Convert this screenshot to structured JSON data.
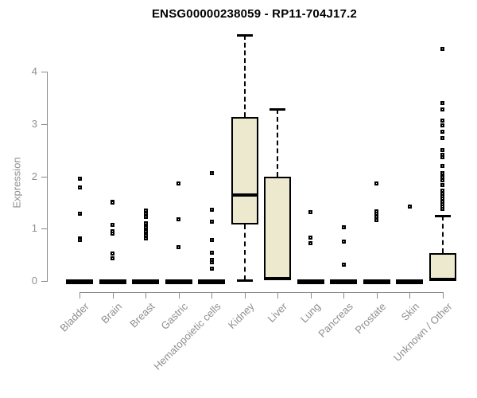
{
  "colors": {
    "box_fill": "#EDE9CF",
    "box_border": "#000000",
    "whisker": "#000000",
    "outlier": "#000000",
    "axis": "#888888",
    "tick_label": "#8f8f8f",
    "title": "#000000",
    "background": "#ffffff"
  },
  "chart_data": {
    "type": "boxplot",
    "title": "ENSG00000238059 - RP11-704J17.2",
    "xlabel": "",
    "ylabel": "Expression",
    "yticks": [
      0,
      1,
      2,
      3,
      4
    ],
    "ylim": [
      0,
      4.8
    ],
    "grid": false,
    "legend": false,
    "categories": [
      "Bladder",
      "Brain",
      "Breast",
      "Gastric",
      "Hematopoietic cells",
      "Kidney",
      "Liver",
      "Lung",
      "Pancreas",
      "Prostate",
      "Skin",
      "Unknown / Other"
    ],
    "boxes": [
      {
        "category": "Bladder",
        "q1": 0,
        "median": 0,
        "q3": 0,
        "whisker_low": 0,
        "whisker_high": 0,
        "outliers": [
          1.96,
          1.79,
          1.28,
          0.82,
          0.78
        ]
      },
      {
        "category": "Brain",
        "q1": 0,
        "median": 0,
        "q3": 0,
        "whisker_low": 0,
        "whisker_high": 0,
        "outliers": [
          1.52,
          1.5,
          1.08,
          0.95,
          0.91,
          0.53,
          0.43
        ]
      },
      {
        "category": "Breast",
        "q1": 0,
        "median": 0,
        "q3": 0,
        "whisker_low": 0,
        "whisker_high": 0,
        "outliers": [
          1.34,
          1.28,
          1.22,
          1.11,
          1.02,
          0.95,
          0.88,
          0.81
        ]
      },
      {
        "category": "Gastric",
        "q1": 0,
        "median": 0,
        "q3": 0,
        "whisker_low": 0,
        "whisker_high": 0,
        "outliers": [
          1.87,
          1.18,
          0.64
        ]
      },
      {
        "category": "Hematopoietic cells",
        "q1": 0,
        "median": 0,
        "q3": 0,
        "whisker_low": 0,
        "whisker_high": 0,
        "outliers": [
          2.07,
          1.36,
          1.14,
          0.79,
          0.54,
          0.41,
          0.36,
          0.23
        ]
      },
      {
        "category": "Kidney",
        "q1": 1.08,
        "median": 1.64,
        "q3": 3.13,
        "whisker_low": 0.02,
        "whisker_high": 4.7,
        "outliers": []
      },
      {
        "category": "Liver",
        "q1": 0.02,
        "median": 0.05,
        "q3": 2.0,
        "whisker_low": null,
        "whisker_high": 3.29,
        "outliers": []
      },
      {
        "category": "Lung",
        "q1": 0,
        "median": 0,
        "q3": 0,
        "whisker_low": 0,
        "whisker_high": 0,
        "outliers": [
          1.31,
          0.83,
          0.72
        ]
      },
      {
        "category": "Pancreas",
        "q1": 0,
        "median": 0,
        "q3": 0,
        "whisker_low": 0,
        "whisker_high": 0,
        "outliers": [
          1.02,
          0.76,
          0.31
        ]
      },
      {
        "category": "Prostate",
        "q1": 0,
        "median": 0,
        "q3": 0,
        "whisker_low": 0,
        "whisker_high": 0,
        "outliers": [
          1.87,
          1.33,
          1.28,
          1.22,
          1.17
        ]
      },
      {
        "category": "Skin",
        "q1": 0,
        "median": 0,
        "q3": 0,
        "whisker_low": 0,
        "whisker_high": 0,
        "outliers": [
          1.42
        ]
      },
      {
        "category": "Unknown / Other",
        "q1": 0,
        "median": 0.03,
        "q3": 0.53,
        "whisker_low": null,
        "whisker_high": 1.25,
        "outliers": [
          4.43,
          3.4,
          3.28,
          3.06,
          2.97,
          2.86,
          2.73,
          2.51,
          2.41,
          2.36,
          2.2,
          2.07,
          1.98,
          1.92,
          1.84,
          1.72,
          1.67,
          1.62,
          1.57,
          1.52,
          1.47,
          1.42,
          1.37
        ]
      }
    ]
  }
}
